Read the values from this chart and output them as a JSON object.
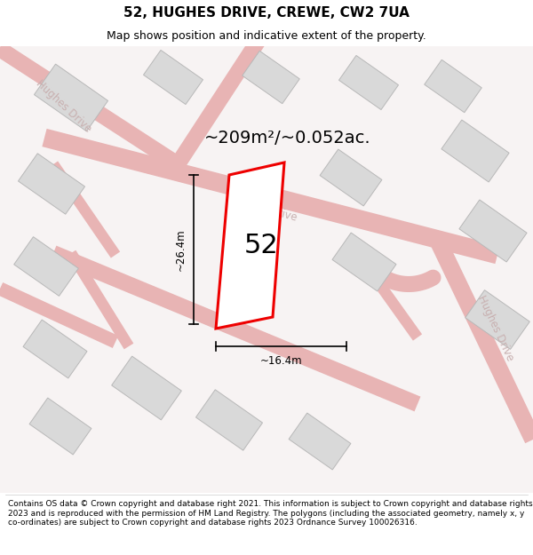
{
  "title": "52, HUGHES DRIVE, CREWE, CW2 7UA",
  "subtitle": "Map shows position and indicative extent of the property.",
  "footer": "Contains OS data © Crown copyright and database right 2021. This information is subject to Crown copyright and database rights 2023 and is reproduced with the permission of HM Land Registry. The polygons (including the associated geometry, namely x, y co-ordinates) are subject to Crown copyright and database rights 2023 Ordnance Survey 100026316.",
  "area_label": "~209m²/~0.052ac.",
  "width_label": "~16.4m",
  "height_label": "~26.4m",
  "plot_number": "52",
  "map_bg": "#f7f3f3",
  "road_color": "#e8b4b4",
  "road_fill": "#f7f3f3",
  "building_color": "#d9d9d9",
  "building_edge": "#b8b8b8",
  "plot_edge_color": "#ee0000",
  "road_label_color": "#c8b0b0",
  "title_fontsize": 11,
  "subtitle_fontsize": 9,
  "footer_fontsize": 6.5,
  "area_fontsize": 14,
  "dim_fontsize": 8.5,
  "plot_num_fontsize": 22
}
